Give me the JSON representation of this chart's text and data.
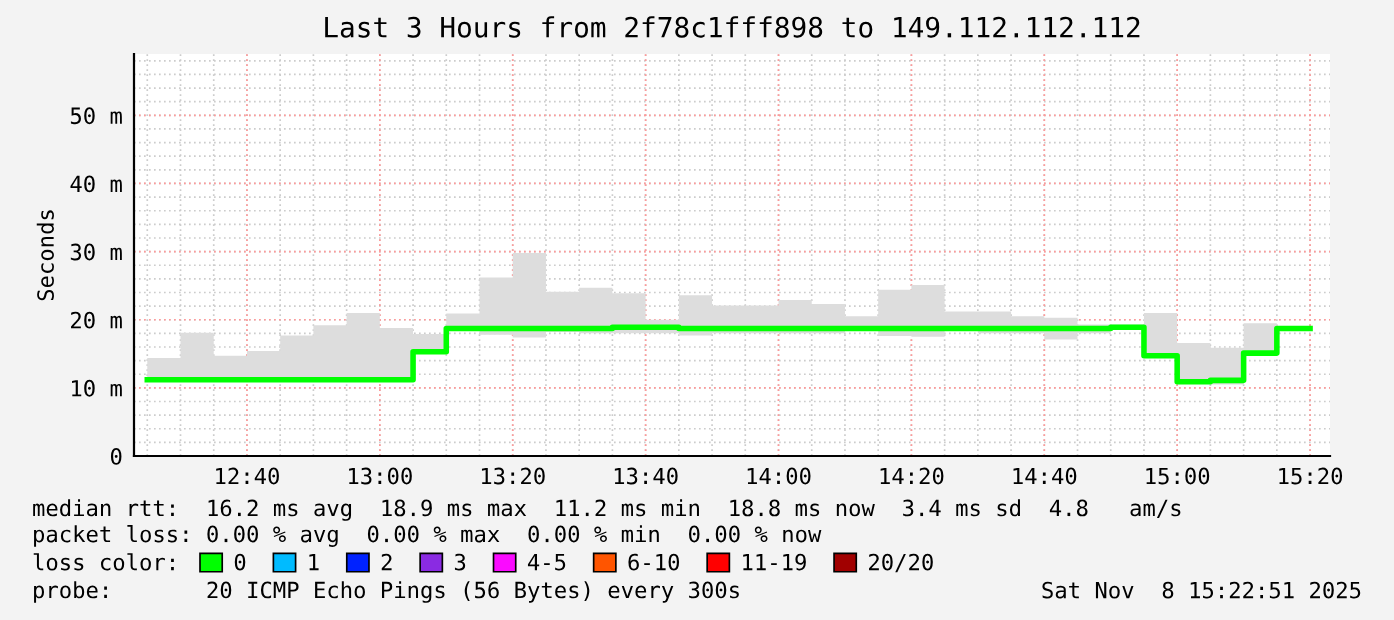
{
  "chart_data": {
    "type": "step",
    "title": "Last 3 Hours from 2f78c1fff898 to 149.112.112.112",
    "ylabel": "Seconds",
    "x": [
      "2025-11-08T12:25",
      "2025-11-08T12:30",
      "2025-11-08T12:35",
      "2025-11-08T12:40",
      "2025-11-08T12:45",
      "2025-11-08T12:50",
      "2025-11-08T12:55",
      "2025-11-08T13:00",
      "2025-11-08T13:05",
      "2025-11-08T13:10",
      "2025-11-08T13:15",
      "2025-11-08T13:20",
      "2025-11-08T13:25",
      "2025-11-08T13:30",
      "2025-11-08T13:35",
      "2025-11-08T13:40",
      "2025-11-08T13:45",
      "2025-11-08T13:50",
      "2025-11-08T13:55",
      "2025-11-08T14:00",
      "2025-11-08T14:05",
      "2025-11-08T14:10",
      "2025-11-08T14:15",
      "2025-11-08T14:20",
      "2025-11-08T14:25",
      "2025-11-08T14:30",
      "2025-11-08T14:35",
      "2025-11-08T14:40",
      "2025-11-08T14:45",
      "2025-11-08T14:50",
      "2025-11-08T14:55",
      "2025-11-08T15:00",
      "2025-11-08T15:05",
      "2025-11-08T15:10",
      "2025-11-08T15:15",
      "2025-11-08T15:20"
    ],
    "series": [
      {
        "name": "0",
        "color": "#00ff00",
        "values": [
          11.2,
          11.2,
          11.2,
          11.2,
          11.2,
          11.2,
          11.2,
          11.2,
          11.2,
          15.3,
          18.7,
          18.7,
          18.7,
          18.7,
          18.7,
          18.9,
          18.9,
          18.7,
          18.7,
          18.7,
          18.7,
          18.7,
          18.7,
          18.7,
          18.7,
          18.7,
          18.7,
          18.7,
          18.7,
          18.7,
          18.9,
          14.7,
          10.9,
          11.1,
          15.1,
          18.7
        ],
        "lower": [
          11.2,
          11.2,
          11.2,
          11.2,
          11.2,
          11.2,
          11.2,
          11.2,
          11.2,
          15.3,
          18.7,
          17.8,
          17.4,
          18.2,
          18.0,
          18.0,
          18.0,
          17.7,
          18.0,
          18.0,
          18.0,
          18.0,
          18.5,
          17.6,
          17.5,
          18.5,
          18.0,
          18.0,
          17.1,
          18.0,
          18.9,
          14.7,
          10.9,
          10.5,
          15.1,
          18.7
        ],
        "upper": [
          16.3,
          14.4,
          18.1,
          14.7,
          15.4,
          17.7,
          19.2,
          21.0,
          18.8,
          17.9,
          20.9,
          26.2,
          29.8,
          24.1,
          24.7,
          23.9,
          20.0,
          23.6,
          22.1,
          22.1,
          22.9,
          22.3,
          20.5,
          24.4,
          25.1,
          21.2,
          21.2,
          20.5,
          20.3,
          19.3,
          19.3,
          21.0,
          16.6,
          15.9,
          19.5,
          18.9
        ]
      },
      {
        "name": "1",
        "color": "#00bbff",
        "values": [
          null,
          null,
          null,
          null,
          null,
          null,
          null,
          null,
          null,
          null,
          null,
          null,
          null,
          null,
          null,
          null,
          null,
          null,
          null,
          null,
          null,
          null,
          null,
          null,
          null,
          null,
          null,
          null,
          null,
          null,
          null,
          null,
          null,
          null,
          null,
          null
        ]
      },
      {
        "name": "2",
        "color": "#0022ff",
        "values": [
          null,
          null,
          null,
          null,
          null,
          null,
          null,
          null,
          null,
          null,
          null,
          null,
          null,
          null,
          null,
          null,
          null,
          null,
          null,
          null,
          null,
          null,
          null,
          null,
          null,
          null,
          null,
          null,
          null,
          null,
          null,
          null,
          null,
          null,
          null,
          null
        ]
      },
      {
        "name": "3",
        "color": "#8a2be2",
        "values": [
          null,
          null,
          null,
          null,
          null,
          null,
          null,
          null,
          null,
          null,
          null,
          null,
          null,
          null,
          null,
          null,
          null,
          null,
          null,
          null,
          null,
          null,
          null,
          null,
          null,
          null,
          null,
          null,
          null,
          null,
          null,
          null,
          null,
          null,
          null,
          null
        ]
      },
      {
        "name": "4-5",
        "color": "#fa0bff",
        "values": [
          null,
          null,
          null,
          null,
          null,
          null,
          null,
          null,
          null,
          null,
          null,
          null,
          null,
          null,
          null,
          null,
          null,
          null,
          null,
          null,
          null,
          null,
          null,
          null,
          null,
          null,
          null,
          null,
          null,
          null,
          null,
          null,
          null,
          null,
          null,
          null
        ]
      },
      {
        "name": "6-10",
        "color": "#ff5500",
        "values": [
          null,
          null,
          null,
          null,
          null,
          null,
          null,
          null,
          null,
          null,
          null,
          null,
          null,
          null,
          null,
          null,
          null,
          null,
          null,
          null,
          null,
          null,
          null,
          null,
          null,
          null,
          null,
          null,
          null,
          null,
          null,
          null,
          null,
          null,
          null,
          null
        ]
      },
      {
        "name": "11-19",
        "color": "#ff0000",
        "values": [
          null,
          null,
          null,
          null,
          null,
          null,
          null,
          null,
          null,
          null,
          null,
          null,
          null,
          null,
          null,
          null,
          null,
          null,
          null,
          null,
          null,
          null,
          null,
          null,
          null,
          null,
          null,
          null,
          null,
          null,
          null,
          null,
          null,
          null,
          null,
          null
        ]
      },
      {
        "name": "20/20",
        "color": "#a10000",
        "values": [
          null,
          null,
          null,
          null,
          null,
          null,
          null,
          null,
          null,
          null,
          null,
          null,
          null,
          null,
          null,
          null,
          null,
          null,
          null,
          null,
          null,
          null,
          null,
          null,
          null,
          null,
          null,
          null,
          null,
          null,
          null,
          null,
          null,
          null,
          null,
          null
        ]
      }
    ],
    "xlim": [
      "2025-11-08T12:23",
      "2025-11-08T15:23"
    ],
    "xticks": [
      {
        "value": "2025-11-08T12:40",
        "label": "12:40"
      },
      {
        "value": "2025-11-08T13:00",
        "label": "13:00"
      },
      {
        "value": "2025-11-08T13:20",
        "label": "13:20"
      },
      {
        "value": "2025-11-08T13:40",
        "label": "13:40"
      },
      {
        "value": "2025-11-08T14:00",
        "label": "14:00"
      },
      {
        "value": "2025-11-08T14:20",
        "label": "14:20"
      },
      {
        "value": "2025-11-08T14:40",
        "label": "14:40"
      },
      {
        "value": "2025-11-08T15:00",
        "label": "15:00"
      },
      {
        "value": "2025-11-08T15:20",
        "label": "15:20"
      }
    ],
    "ylim": [
      0,
      59
    ],
    "yticks": [
      0,
      {
        "value": 10,
        "label": "10 m"
      },
      {
        "value": 20,
        "label": "20 m"
      },
      {
        "value": 30,
        "label": "30 m"
      },
      {
        "value": 40,
        "label": "40 m"
      },
      {
        "value": 50,
        "label": "50 m"
      }
    ],
    "grid": true,
    "legend": "bottom",
    "legend_title": "loss color:",
    "annotations": [
      "median rtt:  16.2 ms avg  18.9 ms max  11.2 ms min  18.8 ms now  3.4 ms sd  4.8   am/s",
      "packet loss: 0.00 % avg  0.00 % max  0.00 % min  0.00 % now",
      "probe:       20 ICMP Echo Pings (56 Bytes) every 300s",
      "Sat Nov  8 15:22:51 2025"
    ]
  }
}
